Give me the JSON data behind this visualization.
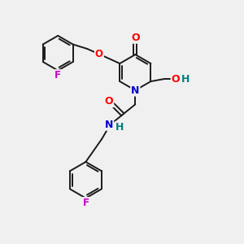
{
  "bg_color": "#f0f0f0",
  "bond_color": "#1a1a1a",
  "atom_colors": {
    "F": "#cc00cc",
    "O": "#ff0000",
    "N": "#0000cc",
    "H_teal": "#008080",
    "C": "#1a1a1a"
  },
  "figsize": [
    3.0,
    3.0
  ],
  "dpi": 100,
  "lw": 1.4
}
